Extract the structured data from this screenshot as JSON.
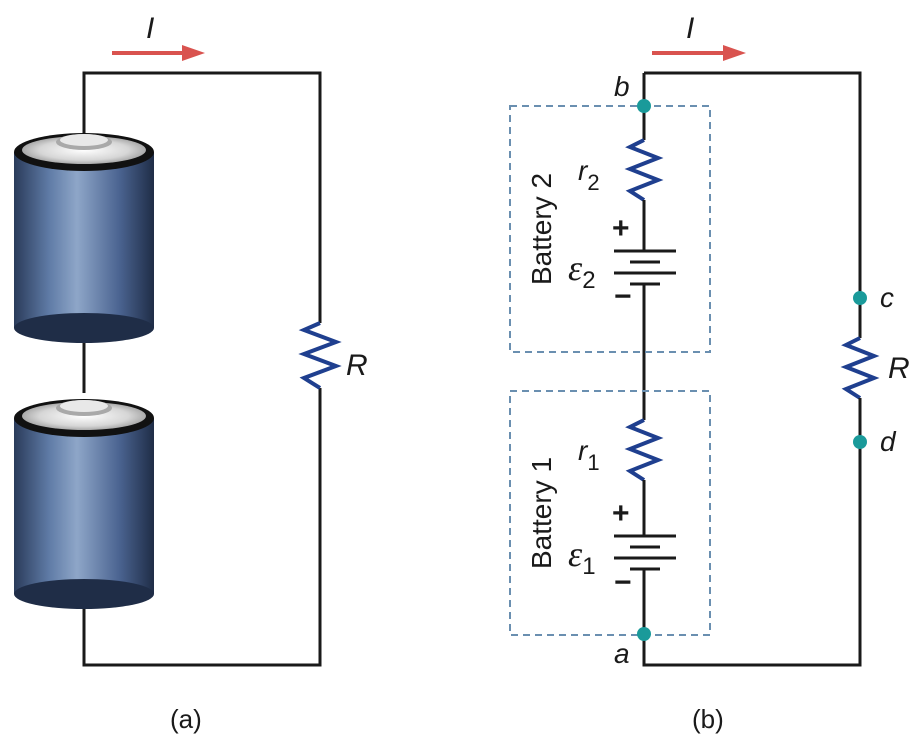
{
  "panel_a": {
    "caption": "(a)",
    "current_label": "I",
    "resistor_label": "R"
  },
  "panel_b": {
    "caption": "(b)",
    "current_label": "I",
    "battery2": {
      "label": "Battery 2",
      "emf_symbol": "ε",
      "emf_sub": "2",
      "resistance_symbol": "r",
      "resistance_sub": "2",
      "plus": "+",
      "minus": "−"
    },
    "battery1": {
      "label": "Battery 1",
      "emf_symbol": "ε",
      "emf_sub": "1",
      "resistance_symbol": "r",
      "resistance_sub": "1",
      "plus": "+",
      "minus": "−"
    },
    "resistor_label": "R",
    "nodes": {
      "a": "a",
      "b": "b",
      "c": "c",
      "d": "d"
    }
  },
  "colors": {
    "wire": "#1a1a1a",
    "resistor": "#1f3f8f",
    "node": "#1a9a9a",
    "current_arrow": "#d9534f",
    "dashed_box": "#6a8fb0",
    "battery_body": "#4e6a96"
  }
}
